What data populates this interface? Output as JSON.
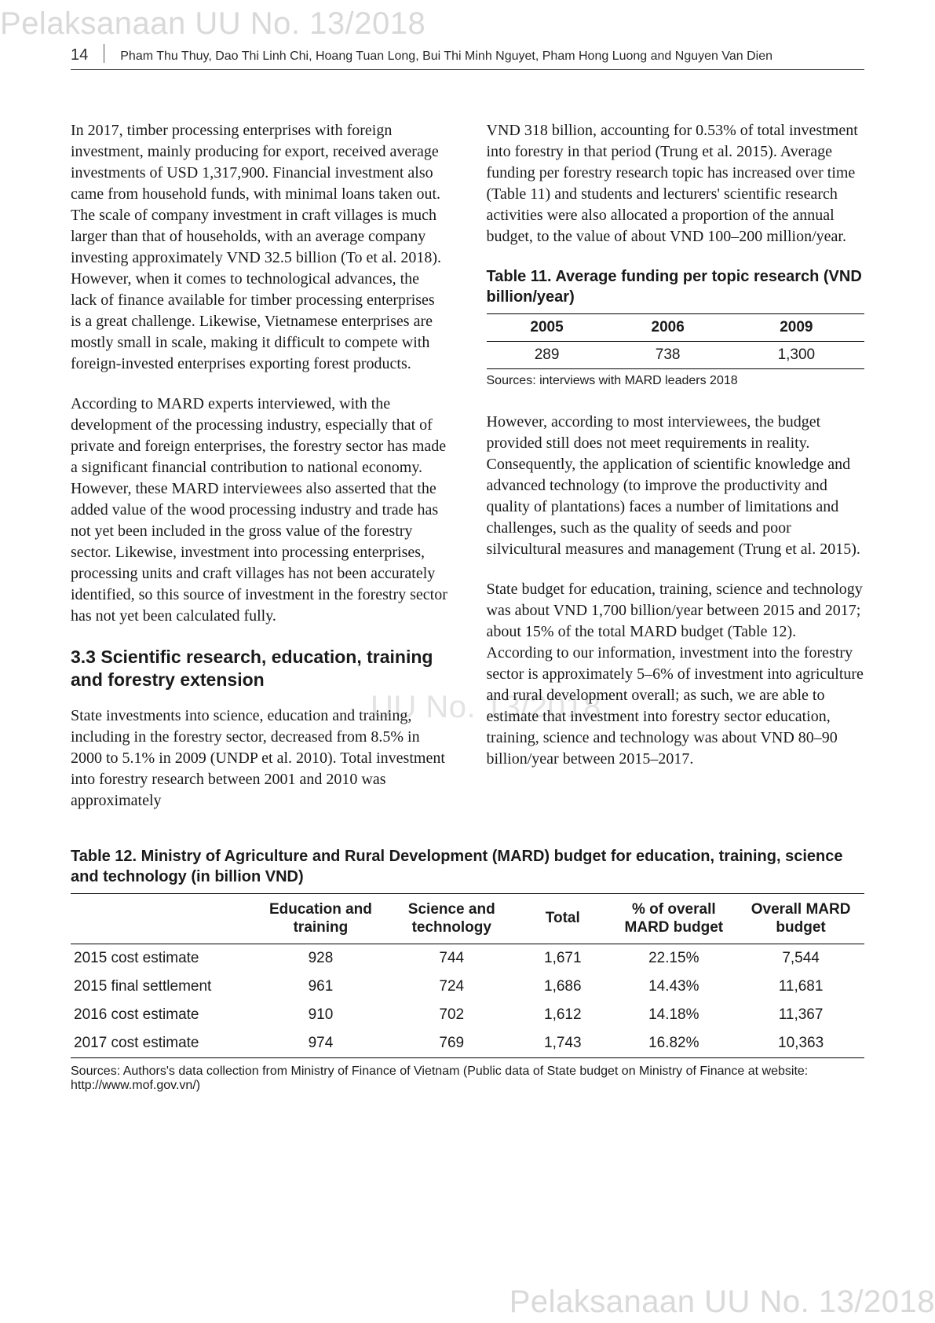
{
  "watermarks": {
    "top": "Pelaksanaan UU No. 13/2018",
    "mid": "UU No. 13/2018",
    "bottom": "Pelaksanaan UU No. 13/2018"
  },
  "runningHead": {
    "pageNumber": "14",
    "authors": "Pham Thu Thuy, Dao Thi Linh Chi, Hoang Tuan Long, Bui Thi Minh Nguyet, Pham Hong Luong and Nguyen Van Dien"
  },
  "left": {
    "p1": "In 2017, timber processing enterprises with foreign investment, mainly producing for export, received average investments of USD 1,317,900. Financial investment also came from household funds, with minimal loans taken out. The scale of company investment in craft villages is much larger than that of households, with an average company investing approximately VND 32.5 billion (To et al. 2018). However, when it comes to technological advances, the lack of finance available for timber processing enterprises is a great challenge. Likewise, Vietnamese enterprises are mostly small in scale, making it difficult to compete with foreign-invested enterprises exporting forest products.",
    "p2": "According to MARD experts interviewed, with the development of the processing industry, especially that of private and foreign enterprises, the forestry sector has made a significant financial contribution to national economy. However, these MARD interviewees also asserted that the added value of the wood processing industry and trade has not yet been included in the gross value of the forestry sector. Likewise, investment into processing enterprises, processing units and craft villages has not been accurately identified, so this source of investment in the forestry sector has not yet been calculated fully.",
    "sectionHeading": "3.3 Scientific research, education, training and forestry extension",
    "p3": "State investments into science, education and training, including in the forestry sector, decreased from 8.5% in 2000 to 5.1% in 2009 (UNDP et al. 2010). Total investment into forestry research between 2001 and 2010 was approximately"
  },
  "right": {
    "p1": "VND 318 billion, accounting for 0.53% of total investment into forestry in that period (Trung et al. 2015). Average funding per forestry research topic has increased over time (Table 11) and students and lecturers' scientific research activities were also allocated a proportion of the annual budget, to the value of about VND 100–200 million/year.",
    "table11": {
      "title": "Table 11.  Average funding per topic research (VND billion/year)",
      "headers": [
        "2005",
        "2006",
        "2009"
      ],
      "row": [
        "289",
        "738",
        "1,300"
      ],
      "source": "Sources: interviews with MARD leaders 2018"
    },
    "p2": "However, according to most interviewees, the budget provided still does not meet requirements in reality. Consequently, the application of scientific knowledge and advanced technology (to improve the productivity and quality of plantations) faces a number of limitations and challenges, such as the quality of seeds and poor silvicultural measures and management (Trung et al. 2015).",
    "p3": "State budget for education, training, science and technology was about VND 1,700 billion/year between 2015 and 2017; about 15% of the total MARD budget (Table 12). According to our information, investment into the forestry sector is approximately 5–6% of investment into agriculture and rural development overall; as such, we are able to estimate that investment into forestry sector education, training, science and technology was about VND 80–90 billion/year between 2015–2017."
  },
  "table12": {
    "title": "Table 12.  Ministry of Agriculture and Rural Development (MARD) budget for education, training, science and technology (in billion VND)",
    "columns": [
      "",
      "Education and training",
      "Science and technology",
      "Total",
      "% of overall MARD budget",
      "Overall MARD budget"
    ],
    "rows": [
      [
        "2015 cost estimate",
        "928",
        "744",
        "1,671",
        "22.15%",
        "7,544"
      ],
      [
        "2015 final settlement",
        "961",
        "724",
        "1,686",
        "14.43%",
        "11,681"
      ],
      [
        "2016 cost estimate",
        "910",
        "702",
        "1,612",
        "14.18%",
        "11,367"
      ],
      [
        "2017 cost estimate",
        "974",
        "769",
        "1,743",
        "16.82%",
        "10,363"
      ]
    ],
    "source": "Sources: Authors's data collection from Ministry of Finance of Vietnam (Public data of State budget on Ministry of Finance at website: http://www.mof.gov.vn/)",
    "colWidths": [
      "23%",
      "17%",
      "16%",
      "12%",
      "16%",
      "16%"
    ]
  },
  "style": {
    "textColor": "#1a1a1a",
    "watermarkColor": "#d9d9d9",
    "bodyFontSize": 20,
    "sansFont": "Arial, Helvetica, sans-serif",
    "serifFont": "Georgia, 'Times New Roman', serif"
  }
}
